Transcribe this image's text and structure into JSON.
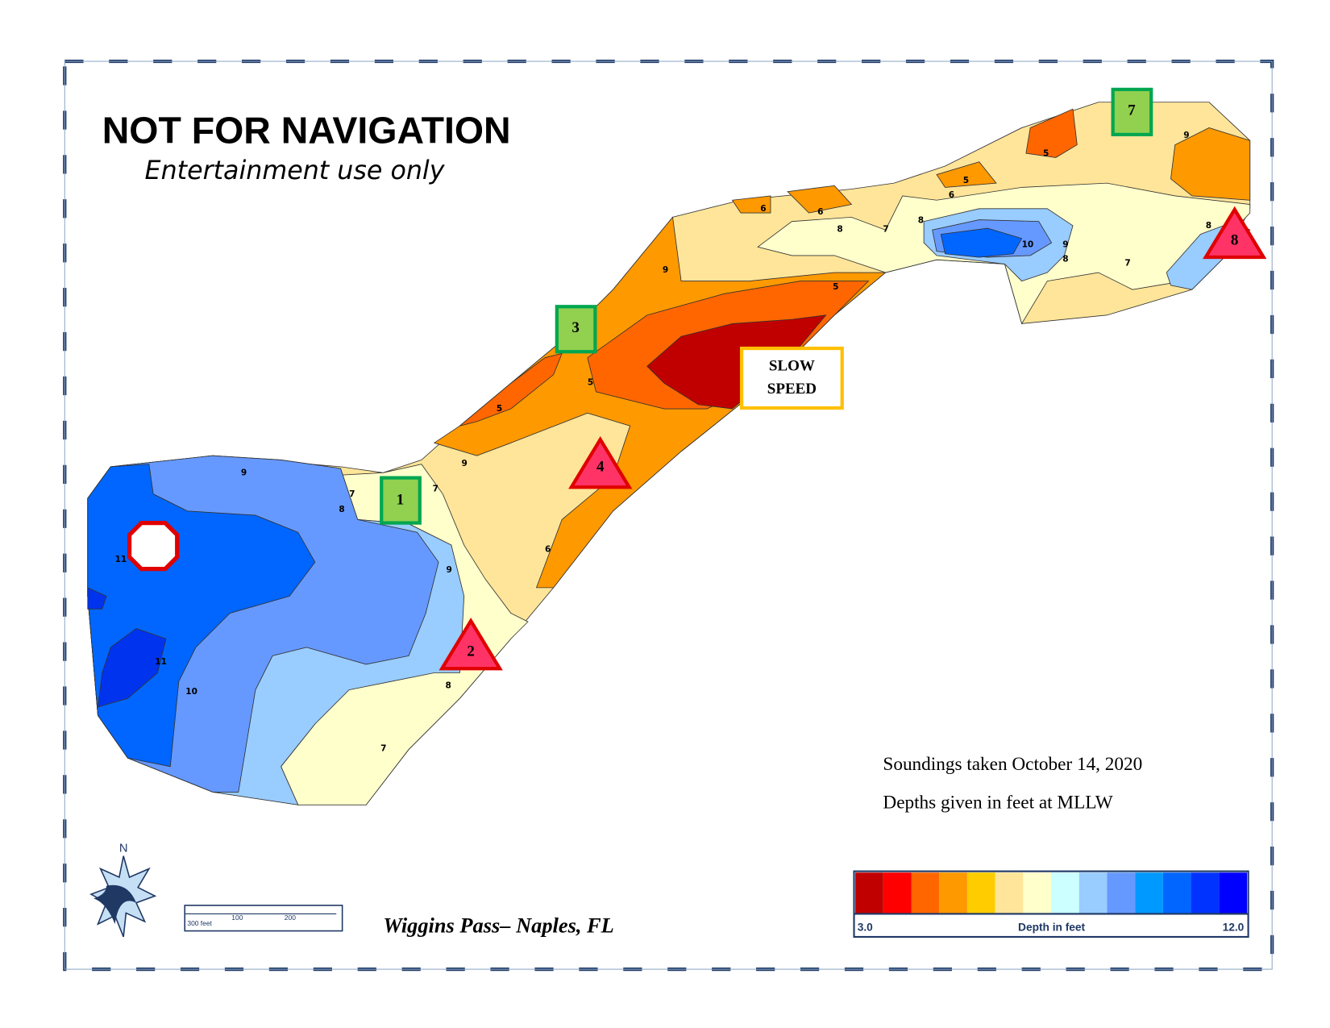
{
  "header": {
    "title": "NOT FOR NAVIGATION",
    "subtitle": "Entertainment use only"
  },
  "markers": {
    "green": [
      "1",
      "3",
      "7"
    ],
    "red": [
      "2",
      "4",
      "8"
    ],
    "slow_speed": [
      "SLOW",
      "SPEED"
    ]
  },
  "contours": [
    "9",
    "7",
    "8",
    "7",
    "9",
    "5",
    "5",
    "9",
    "6",
    "9",
    "10",
    "11",
    "11",
    "8",
    "7",
    "6",
    "6",
    "5",
    "8",
    "7",
    "8",
    "5",
    "6",
    "10",
    "9",
    "8",
    "7",
    "9",
    "8",
    "5"
  ],
  "footer": {
    "place": "Wiggins Pass– Naples, FL",
    "compass": "N",
    "scale": [
      "300 feet",
      "100",
      "200"
    ]
  },
  "notes": [
    "Soundings taken October 14, 2020",
    "Depths given in feet at MLLW"
  ],
  "legend": {
    "min": "3.0",
    "label": "Depth in feet",
    "max": "12.0",
    "colors": [
      "#c00000",
      "#ff0000",
      "#ff6600",
      "#ff9900",
      "#ffcc00",
      "#ffe599",
      "#ffffcc",
      "#ccffff",
      "#99ccff",
      "#6699ff",
      "#0099ff",
      "#0066ff",
      "#0033ff",
      "#0000ff"
    ]
  }
}
